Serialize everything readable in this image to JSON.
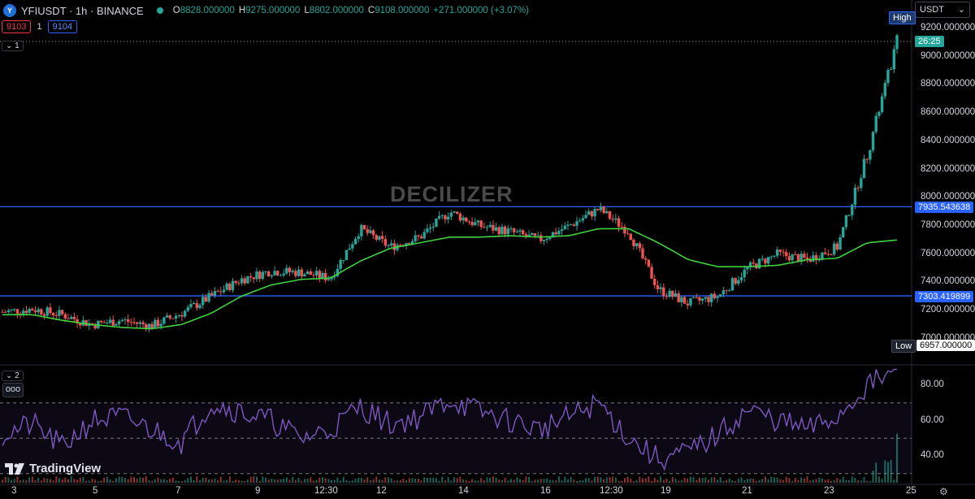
{
  "header": {
    "symbol_title": "YFIUSDT · 1h · BINANCE",
    "open_label": "O",
    "open": "8828.000000",
    "high_label": "H",
    "high": "9275.000000",
    "low_label": "L",
    "low": "8802.000000",
    "close_label": "C",
    "close": "9108.000000",
    "change": "+271.000000 (+3.07%)"
  },
  "trade": {
    "sell_price": "9103",
    "spread": "1",
    "buy_price": "9104"
  },
  "panes": {
    "main_toggle": "1",
    "rsi_toggle": "2",
    "more": "ooo"
  },
  "currency_select": "USDT",
  "watermark": "DECILIZER",
  "logo_text": "TradingView",
  "price_scale": {
    "ticks": [
      "9200.000000",
      "9000.000000",
      "8800.000000",
      "8600.000000",
      "8400.000000",
      "8200.000000",
      "8000.000000",
      "7800.000000",
      "7600.000000",
      "7400.000000",
      "7200.000000",
      "7000.000000"
    ],
    "high_tag": "High",
    "countdown": "26:25",
    "level_upper": "7935.543638",
    "level_lower": "7303.419899",
    "low_tag": "Low",
    "low_value": "6957.000000"
  },
  "rsi_scale": {
    "ticks": [
      "80.00",
      "60.00",
      "40.00"
    ]
  },
  "time_axis": {
    "labels": [
      "3",
      "5",
      "7",
      "9",
      "12:30",
      "12",
      "14",
      "16",
      "12:30",
      "19",
      "21",
      "23",
      "25"
    ]
  },
  "colors": {
    "up": "#26a69a",
    "down": "#ef5350",
    "ma": "#3fd13f",
    "level_line": "#2962ff",
    "rsi": "#7e57c2",
    "background": "#000000"
  },
  "chart_data": {
    "type": "line",
    "series": [
      {
        "values": [
          7190,
          7210,
          7170,
          7100,
          7130,
          7090,
          7180,
          7300,
          7420,
          7480,
          7470,
          7430,
          7780,
          7650,
          7720,
          7900,
          7800,
          7760,
          7700,
          7800,
          7920,
          7760,
          7350,
          7250,
          7300,
          7500,
          7600,
          7560,
          7650,
          8300,
          9108
        ]
      },
      {
        "values": [
          7170,
          7170,
          7130,
          7100,
          7080,
          7070,
          7100,
          7180,
          7300,
          7380,
          7420,
          7430,
          7550,
          7640,
          7680,
          7720,
          7720,
          7730,
          7720,
          7730,
          7780,
          7780,
          7680,
          7560,
          7510,
          7510,
          7520,
          7560,
          7570,
          7680,
          7700
        ]
      },
      {
        "values": [
          52,
          58,
          45,
          60,
          62,
          55,
          48,
          70,
          65,
          60,
          50,
          55,
          68,
          58,
          62,
          72,
          65,
          60,
          55,
          62,
          70,
          50,
          38,
          42,
          52,
          66,
          60,
          55,
          62,
          80,
          88
        ]
      }
    ],
    "ylim": [
      6957,
      9275
    ],
    "rsi_range": [
      30,
      90
    ],
    "rsi_bands": [
      70,
      50,
      30
    ]
  }
}
